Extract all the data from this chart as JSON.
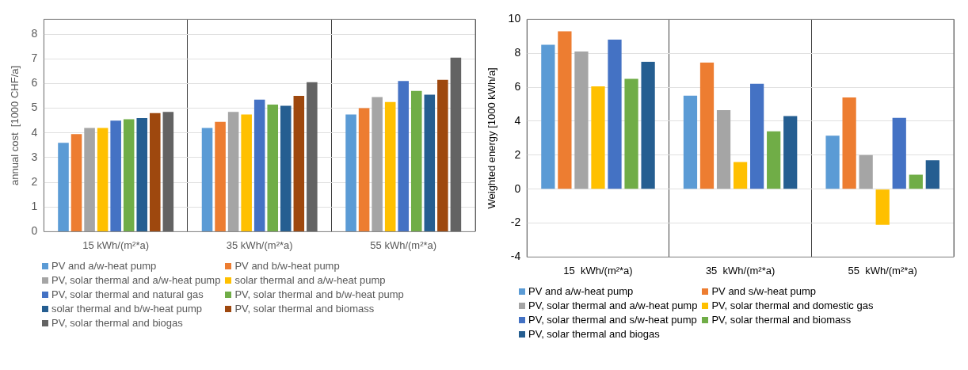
{
  "chart_data": [
    {
      "type": "bar",
      "ylabel": "annual cost  [1000 CHF/a]",
      "categories": [
        "15 kWh/(m²*a)",
        "35 kWh/(m²*a)",
        "55 kWh/(m²*a)"
      ],
      "ylim": [
        0,
        8.6
      ],
      "yticks": [
        0,
        1,
        2,
        3,
        4,
        5,
        6,
        7,
        8
      ],
      "grid": true,
      "legend": "bottom",
      "series": [
        {
          "name": "PV and a/w-heat pump",
          "color": "#5b9bd5",
          "values": [
            3.6,
            4.2,
            4.75
          ]
        },
        {
          "name": "PV and b/w-heat pump",
          "color": "#ed7d31",
          "values": [
            3.95,
            4.45,
            5.0
          ]
        },
        {
          "name": "PV, solar thermal and a/w-heat pump",
          "color": "#a5a5a5",
          "values": [
            4.2,
            4.85,
            5.45
          ]
        },
        {
          "name": "solar thermal and a/w-heat pump",
          "color": "#ffc000",
          "values": [
            4.2,
            4.75,
            5.25
          ]
        },
        {
          "name": "PV, solar thermal and natural gas",
          "color": "#4472c4",
          "values": [
            4.5,
            5.35,
            6.1
          ]
        },
        {
          "name": "PV, solar thermal and b/w-heat pump",
          "color": "#70ad47",
          "values": [
            4.55,
            5.15,
            5.7
          ]
        },
        {
          "name": "solar thermal and b/w-heat pump",
          "color": "#255e91",
          "values": [
            4.6,
            5.1,
            5.55
          ]
        },
        {
          "name": "PV, solar thermal and biomass",
          "color": "#9e480e",
          "values": [
            4.8,
            5.5,
            6.15
          ]
        },
        {
          "name": "PV, solar thermal and biogas",
          "color": "#636363",
          "values": [
            4.85,
            6.05,
            7.05
          ]
        }
      ]
    },
    {
      "type": "bar",
      "ylabel": "Weighted energy [1000 kWh/a]",
      "categories": [
        "15  kWh/(m²*a)",
        "35  kWh/(m²*a)",
        "55  kWh/(m²*a)"
      ],
      "ylim": [
        -4,
        10
      ],
      "yticks": [
        -4,
        -2,
        0,
        2,
        4,
        6,
        8,
        10
      ],
      "grid": true,
      "legend": "bottom",
      "series": [
        {
          "name": "PV and a/w-heat pump",
          "color": "#5b9bd5",
          "values": [
            8.5,
            5.5,
            3.15
          ]
        },
        {
          "name": "PV and s/w-heat pump",
          "color": "#ed7d31",
          "values": [
            9.3,
            7.45,
            5.4
          ]
        },
        {
          "name": "PV, solar thermal and a/w-heat pump",
          "color": "#a5a5a5",
          "values": [
            8.1,
            4.65,
            2.0
          ]
        },
        {
          "name": "PV, solar thermal and domestic gas",
          "color": "#ffc000",
          "values": [
            6.05,
            1.6,
            -2.1
          ]
        },
        {
          "name": "PV, solar thermal and s/w-heat pump",
          "color": "#4472c4",
          "values": [
            8.8,
            6.2,
            4.2
          ]
        },
        {
          "name": "PV, solar thermal and biomass",
          "color": "#70ad47",
          "values": [
            6.5,
            3.4,
            0.85
          ]
        },
        {
          "name": "PV, solar thermal and biogas",
          "color": "#255e91",
          "values": [
            7.5,
            4.3,
            1.7
          ]
        }
      ]
    }
  ]
}
